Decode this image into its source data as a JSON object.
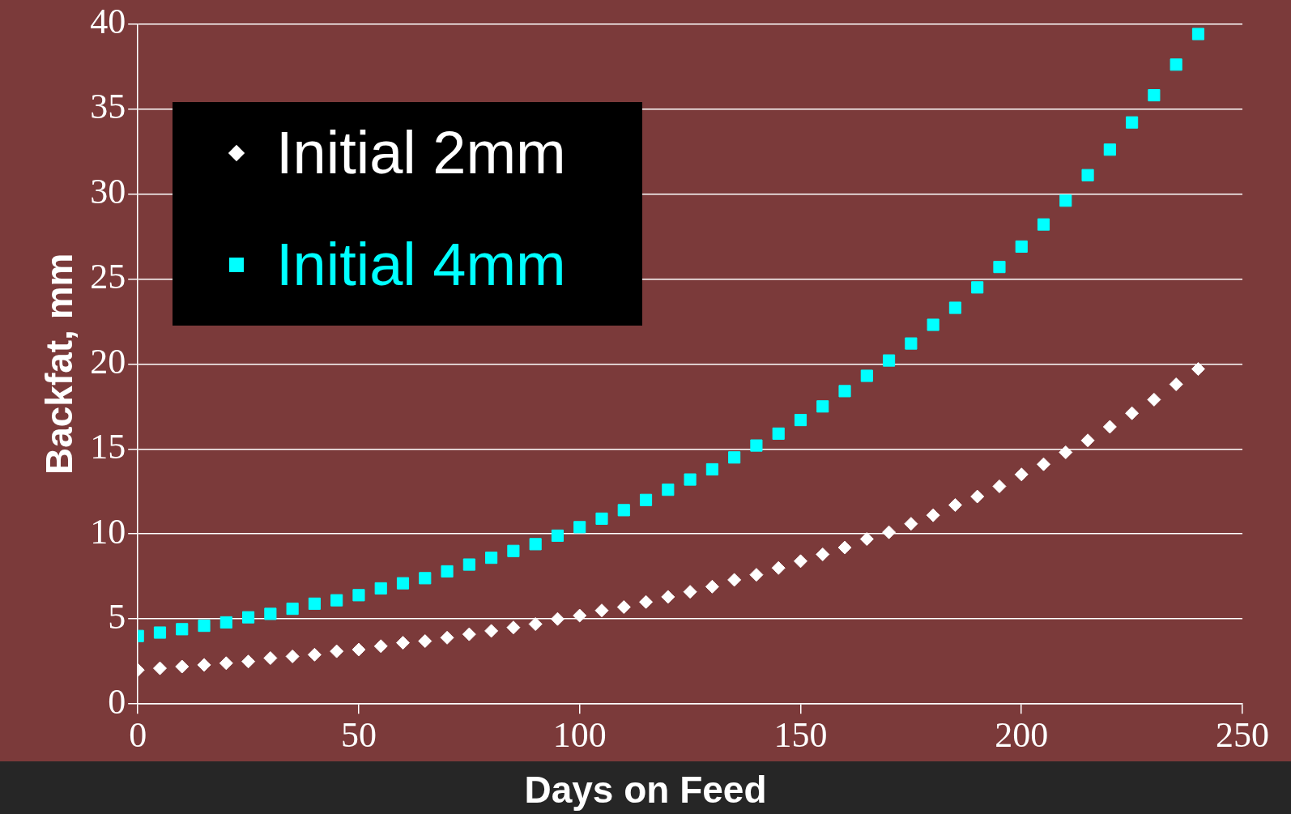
{
  "chart_data": {
    "type": "scatter",
    "xlabel": "Days on Feed",
    "ylabel": "Backfat, mm",
    "x": [
      0,
      5,
      10,
      15,
      20,
      25,
      30,
      35,
      40,
      45,
      50,
      55,
      60,
      65,
      70,
      75,
      80,
      85,
      90,
      95,
      100,
      105,
      110,
      115,
      120,
      125,
      130,
      135,
      140,
      145,
      150,
      155,
      160,
      165,
      170,
      175,
      180,
      185,
      190,
      195,
      200,
      205,
      210,
      215,
      220,
      225,
      230,
      235,
      240
    ],
    "series": [
      {
        "name": "Initial 2mm",
        "color": "#ffffff",
        "marker": "diamond",
        "values": [
          2.0,
          2.1,
          2.2,
          2.3,
          2.4,
          2.5,
          2.7,
          2.8,
          2.9,
          3.1,
          3.2,
          3.4,
          3.6,
          3.7,
          3.9,
          4.1,
          4.3,
          4.5,
          4.7,
          5.0,
          5.2,
          5.5,
          5.7,
          6.0,
          6.3,
          6.6,
          6.9,
          7.3,
          7.6,
          8.0,
          8.4,
          8.8,
          9.2,
          9.7,
          10.1,
          10.6,
          11.1,
          11.7,
          12.2,
          12.8,
          13.5,
          14.1,
          14.8,
          15.5,
          16.3,
          17.1,
          17.9,
          18.8,
          19.7
        ]
      },
      {
        "name": "Initial 4mm",
        "color": "#00ffff",
        "marker": "square",
        "values": [
          4.0,
          4.2,
          4.4,
          4.6,
          4.8,
          5.1,
          5.3,
          5.6,
          5.9,
          6.1,
          6.4,
          6.8,
          7.1,
          7.4,
          7.8,
          8.2,
          8.6,
          9.0,
          9.4,
          9.9,
          10.4,
          10.9,
          11.4,
          12.0,
          12.6,
          13.2,
          13.8,
          14.5,
          15.2,
          15.9,
          16.7,
          17.5,
          18.4,
          19.3,
          20.2,
          21.2,
          22.3,
          23.3,
          24.5,
          25.7,
          26.9,
          28.2,
          29.6,
          31.1,
          32.6,
          34.2,
          35.8,
          37.6,
          39.4
        ]
      }
    ],
    "xlim": [
      0,
      250
    ],
    "xticks": [
      0,
      50,
      100,
      150,
      200,
      250
    ],
    "ylim": [
      0,
      40
    ],
    "yticks": [
      0,
      5,
      10,
      15,
      20,
      25,
      30,
      35,
      40
    ],
    "grid": "y",
    "legend": "top left"
  }
}
